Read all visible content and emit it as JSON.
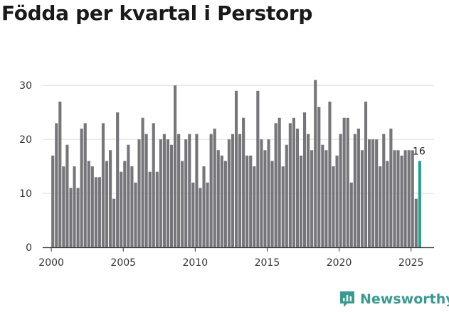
{
  "page_title": "Födda per kvartal i Perstorp",
  "brand": {
    "name": "Newsworthy",
    "icon": "newsworthy-logo-icon",
    "color": "#3a9a8f"
  },
  "chart_data": {
    "type": "bar",
    "title": "Födda per kvartal i Perstorp",
    "xlabel": "",
    "ylabel": "",
    "ylim": [
      0,
      32
    ],
    "yticks": [
      0,
      10,
      20,
      30
    ],
    "xlim": [
      1999.4,
      2026.6
    ],
    "xticks": [
      2000,
      2005,
      2010,
      2015,
      2020,
      2025
    ],
    "grid": true,
    "start": {
      "year": 2000,
      "quarter": 1
    },
    "bar_color": "#76767a",
    "highlight_color": "#2a9d8f",
    "highlight_last": true,
    "annotation": {
      "label": "16"
    },
    "values": [
      17,
      23,
      27,
      15,
      19,
      11,
      15,
      11,
      22,
      23,
      16,
      15,
      13,
      13,
      23,
      16,
      18,
      9,
      25,
      14,
      16,
      19,
      15,
      12,
      20,
      24,
      21,
      14,
      23,
      14,
      20,
      21,
      20,
      19,
      30,
      21,
      16,
      20,
      21,
      12,
      21,
      11,
      15,
      12,
      21,
      22,
      18,
      17,
      16,
      20,
      21,
      29,
      21,
      24,
      17,
      17,
      15,
      29,
      20,
      18,
      20,
      16,
      23,
      24,
      15,
      19,
      23,
      24,
      22,
      17,
      25,
      21,
      18,
      31,
      26,
      19,
      18,
      27,
      15,
      17,
      21,
      24,
      24,
      12,
      21,
      22,
      18,
      27,
      20,
      20,
      20,
      15,
      21,
      16,
      22,
      18,
      18,
      17,
      18,
      18,
      18,
      9,
      16
    ]
  }
}
